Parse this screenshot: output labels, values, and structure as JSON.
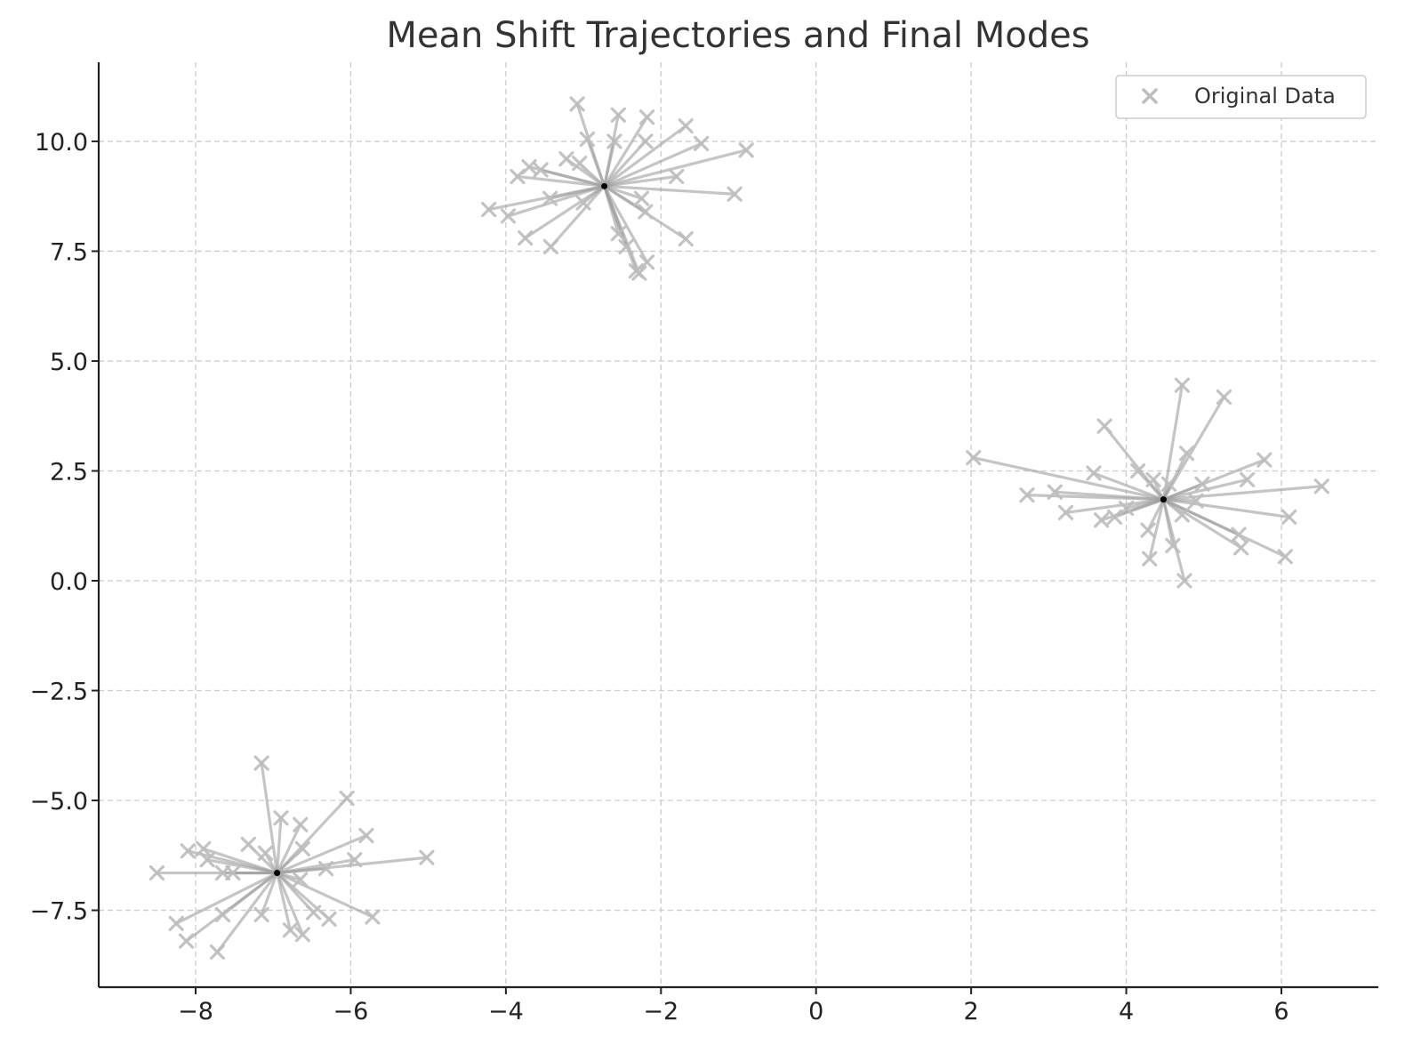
{
  "chart_data": {
    "type": "scatter",
    "title": "Mean Shift Trajectories and Final Modes",
    "xlabel": "",
    "ylabel": "",
    "xlim": [
      -9.25,
      7.25
    ],
    "ylim": [
      -9.25,
      11.8
    ],
    "x_ticks": [
      -8,
      -6,
      -4,
      -2,
      0,
      2,
      4,
      6
    ],
    "x_tick_labels": [
      "−8",
      "−6",
      "−4",
      "−2",
      "0",
      "2",
      "4",
      "6"
    ],
    "y_ticks": [
      -7.5,
      -5.0,
      -2.5,
      0.0,
      2.5,
      5.0,
      7.5,
      10.0
    ],
    "y_tick_labels": [
      "−7.5",
      "−5.0",
      "−2.5",
      "0.0",
      "2.5",
      "5.0",
      "7.5",
      "10.0"
    ],
    "grid": true,
    "legend": {
      "position": "top-right",
      "entries": [
        "Original Data"
      ]
    },
    "colors": {
      "points": "#bdbdbd",
      "trajectories": "#9e9e9e",
      "modes": "#000000",
      "axis": "#222222",
      "grid": "#cccccc"
    },
    "modes": [
      {
        "x": -2.73,
        "y": 8.98
      },
      {
        "x": 4.48,
        "y": 1.85
      },
      {
        "x": -6.95,
        "y": -6.65
      }
    ],
    "series": [
      {
        "name": "Original Data",
        "marker": "x",
        "x": [
          -3.08,
          -2.55,
          -2.18,
          -2.95,
          -2.6,
          -2.2,
          -1.68,
          -1.48,
          -0.9,
          -3.22,
          -3.55,
          -3.7,
          -3.85,
          -1.8,
          -1.05,
          -4.22,
          -3.97,
          -3.43,
          -3.0,
          -2.25,
          -2.2,
          -3.75,
          -3.42,
          -2.55,
          -2.45,
          -1.68,
          -2.32,
          -2.28,
          -2.18,
          -3.05,
          4.72,
          5.26,
          3.72,
          4.15,
          4.78,
          3.58,
          5.78,
          5.56,
          2.03,
          2.72,
          3.08,
          3.22,
          3.68,
          3.85,
          4.0,
          4.55,
          4.72,
          4.98,
          6.52,
          6.1,
          6.05,
          5.45,
          5.48,
          4.3,
          4.28,
          4.6,
          4.75,
          4.9,
          4.35,
          -7.15,
          -6.9,
          -6.65,
          -6.05,
          -5.8,
          -5.95,
          -5.02,
          -8.5,
          -8.1,
          -7.9,
          -7.85,
          -7.65,
          -7.32,
          -7.1,
          -8.25,
          -8.12,
          -7.72,
          -7.65,
          -7.15,
          -6.78,
          -6.62,
          -6.48,
          -6.28,
          -6.32,
          -5.72,
          -6.62,
          -7.52,
          -6.65
        ],
        "y": [
          10.85,
          10.6,
          10.55,
          10.05,
          10.0,
          10.0,
          10.35,
          9.95,
          9.8,
          9.6,
          9.35,
          9.42,
          9.2,
          9.2,
          8.8,
          8.45,
          8.3,
          8.7,
          8.6,
          8.7,
          8.4,
          7.8,
          7.6,
          7.9,
          7.6,
          7.78,
          7.05,
          7.0,
          7.25,
          9.5,
          4.45,
          4.18,
          3.52,
          2.5,
          2.9,
          2.45,
          2.75,
          2.3,
          2.8,
          1.95,
          2.02,
          1.55,
          1.38,
          1.45,
          1.65,
          2.2,
          1.5,
          2.2,
          2.15,
          1.45,
          0.55,
          1.05,
          0.75,
          0.5,
          1.15,
          0.8,
          0.0,
          1.82,
          2.3,
          -4.15,
          -5.4,
          -5.55,
          -4.95,
          -5.8,
          -6.35,
          -6.3,
          -6.65,
          -6.15,
          -6.1,
          -6.35,
          -6.65,
          -6.0,
          -6.2,
          -7.8,
          -8.2,
          -8.45,
          -7.6,
          -7.6,
          -7.95,
          -8.05,
          -7.55,
          -7.7,
          -6.55,
          -7.65,
          -6.1,
          -6.65,
          -6.8
        ]
      }
    ]
  }
}
